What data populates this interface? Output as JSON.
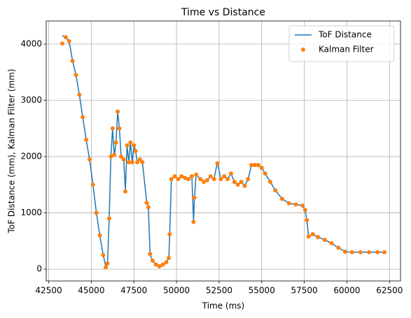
{
  "chart_data": {
    "type": "line",
    "title": "Time vs Distance",
    "x_label": "Time (ms)",
    "y_label": "ToF Distance (mm), Kalman Filter (mm)",
    "x": [
      43300,
      43500,
      43700,
      43900,
      44100,
      44300,
      44500,
      44700,
      44900,
      45100,
      45300,
      45500,
      45700,
      45850,
      45950,
      46050,
      46150,
      46250,
      46350,
      46450,
      46550,
      46650,
      46750,
      46900,
      47000,
      47100,
      47200,
      47300,
      47400,
      47500,
      47600,
      47700,
      47850,
      48000,
      48250,
      48350,
      48450,
      48600,
      48800,
      49000,
      49200,
      49400,
      49550,
      49600,
      49700,
      49900,
      50100,
      50300,
      50500,
      50700,
      50900,
      51000,
      51050,
      51150,
      51400,
      51600,
      51800,
      52000,
      52200,
      52400,
      52600,
      52800,
      53000,
      53200,
      53400,
      53600,
      53800,
      54000,
      54200,
      54400,
      54600,
      54800,
      55000,
      55200,
      55500,
      55800,
      56200,
      56600,
      57000,
      57400,
      57550,
      57650,
      57750,
      58000,
      58300,
      58700,
      59100,
      59500,
      59900,
      60300,
      60800,
      61300,
      61800,
      62200
    ],
    "series": [
      {
        "name": "ToF Distance",
        "color": "#1f77b4",
        "style": "line",
        "values": [
          4150,
          4120,
          4050,
          3700,
          3450,
          3100,
          2700,
          2300,
          1950,
          1500,
          1000,
          600,
          250,
          50,
          100,
          900,
          2000,
          2500,
          2000,
          2250,
          2800,
          2500,
          2000,
          1950,
          1400,
          2200,
          1900,
          2250,
          1900,
          2200,
          2100,
          1900,
          1950,
          1900,
          1200,
          1100,
          250,
          150,
          80,
          50,
          80,
          120,
          200,
          600,
          1600,
          1650,
          1600,
          1650,
          1620,
          1600,
          1650,
          850,
          1250,
          1680,
          1600,
          1550,
          1580,
          1650,
          1600,
          1900,
          1600,
          1650,
          1600,
          1700,
          1550,
          1500,
          1550,
          1480,
          1600,
          1850,
          1850,
          1850,
          1800,
          1700,
          1550,
          1400,
          1250,
          1170,
          1150,
          1130,
          1050,
          870,
          580,
          620,
          570,
          520,
          460,
          380,
          310,
          300,
          300,
          300,
          300,
          300
        ]
      },
      {
        "name": "Kalman Filter",
        "color": "#ff7f0e",
        "style": "markers",
        "values": [
          4010,
          4120,
          4050,
          3700,
          3450,
          3100,
          2700,
          2300,
          1950,
          1500,
          1000,
          600,
          250,
          30,
          100,
          900,
          2000,
          2500,
          2030,
          2250,
          2800,
          2500,
          2000,
          1950,
          1380,
          2200,
          1900,
          2250,
          1900,
          2200,
          2100,
          1900,
          1950,
          1900,
          1180,
          1100,
          270,
          150,
          80,
          50,
          80,
          120,
          200,
          620,
          1600,
          1650,
          1600,
          1650,
          1620,
          1600,
          1650,
          840,
          1270,
          1680,
          1600,
          1550,
          1580,
          1650,
          1600,
          1880,
          1600,
          1650,
          1600,
          1700,
          1550,
          1500,
          1550,
          1480,
          1600,
          1850,
          1850,
          1850,
          1800,
          1700,
          1550,
          1400,
          1250,
          1170,
          1150,
          1130,
          1050,
          870,
          580,
          620,
          570,
          520,
          460,
          380,
          310,
          300,
          300,
          300,
          300,
          300
        ]
      }
    ],
    "xlim": [
      42355,
      63145
    ],
    "ylim": [
      -210,
      4410
    ],
    "xticks": [
      42500,
      45000,
      47500,
      50000,
      52500,
      55000,
      57500,
      60000,
      62500
    ],
    "yticks": [
      0,
      1000,
      2000,
      3000,
      4000
    ],
    "grid": true,
    "legend": "upper right"
  }
}
